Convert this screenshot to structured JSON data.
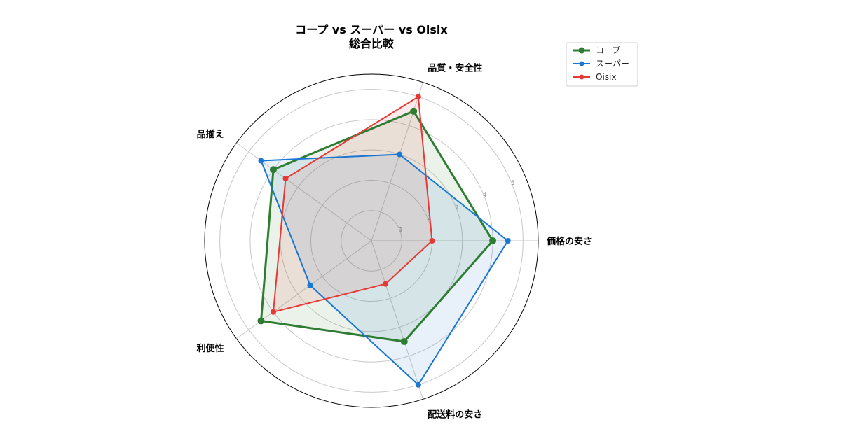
{
  "chart_data": {
    "type": "radar",
    "title": "コープ vs スーパー vs Oisix",
    "subtitle": "総合比較",
    "categories": [
      "価格の安さ",
      "品質・安全性",
      "品揃え",
      "利便性",
      "配送料の安さ"
    ],
    "rlim": [
      0,
      5.5
    ],
    "rticks": [
      1,
      2,
      3,
      4,
      5
    ],
    "grid": true,
    "legend_position": "top-right",
    "series": [
      {
        "name": "コープ",
        "values": [
          4,
          4.5,
          4,
          4.5,
          3.5
        ],
        "color": "#2e7d32"
      },
      {
        "name": "スーパー",
        "values": [
          4.5,
          3,
          4.5,
          2.5,
          5
        ],
        "color": "#1976d2"
      },
      {
        "name": "Oisix",
        "values": [
          2,
          5,
          3.5,
          4,
          1.5
        ],
        "color": "#e53935"
      }
    ]
  }
}
